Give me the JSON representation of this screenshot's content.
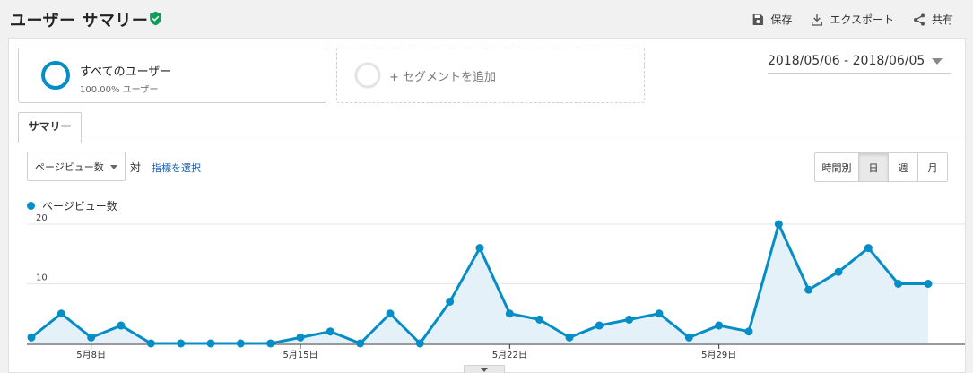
{
  "header": {
    "title": "ユーザー サマリー",
    "actions": [
      {
        "label": "保存",
        "icon": "save-icon"
      },
      {
        "label": "エクスポート",
        "icon": "export-icon"
      },
      {
        "label": "共有",
        "icon": "share-icon"
      }
    ]
  },
  "segments": {
    "active": {
      "title": "すべてのユーザー",
      "subtitle": "100.00% ユーザー"
    },
    "add_label": "+ セグメントを追加"
  },
  "date_range": "2018/05/06 - 2018/06/05",
  "tabs": [
    {
      "label": "サマリー"
    }
  ],
  "controls": {
    "metric_select": "ページビュー数",
    "vs": "対",
    "pick_metric": "指標を選択",
    "granularity": [
      {
        "label": "時間別",
        "active": false
      },
      {
        "label": "日",
        "active": true
      },
      {
        "label": "週",
        "active": false
      },
      {
        "label": "月",
        "active": false
      }
    ]
  },
  "colors": {
    "series": "#058dc7",
    "area": "#e5f1f8",
    "accent": "#1a5fb4",
    "verified": "#0f9d58"
  },
  "chart_data": {
    "type": "area",
    "series": [
      {
        "name": "ページビュー数",
        "values": [
          1,
          5,
          1,
          3,
          0,
          0,
          0,
          0,
          0,
          1,
          2,
          0,
          5,
          0,
          7,
          16,
          5,
          4,
          1,
          3,
          4,
          5,
          1,
          3,
          2,
          20,
          9,
          12,
          16,
          10,
          10
        ]
      }
    ],
    "x_tick_labels": [
      {
        "index": 2,
        "label": "5月8日"
      },
      {
        "index": 9,
        "label": "5月15日"
      },
      {
        "index": 16,
        "label": "5月22日"
      },
      {
        "index": 23,
        "label": "5月29日"
      }
    ],
    "y_tick_labels": [
      10,
      20
    ],
    "ylim": [
      0,
      20
    ],
    "grid": true
  }
}
